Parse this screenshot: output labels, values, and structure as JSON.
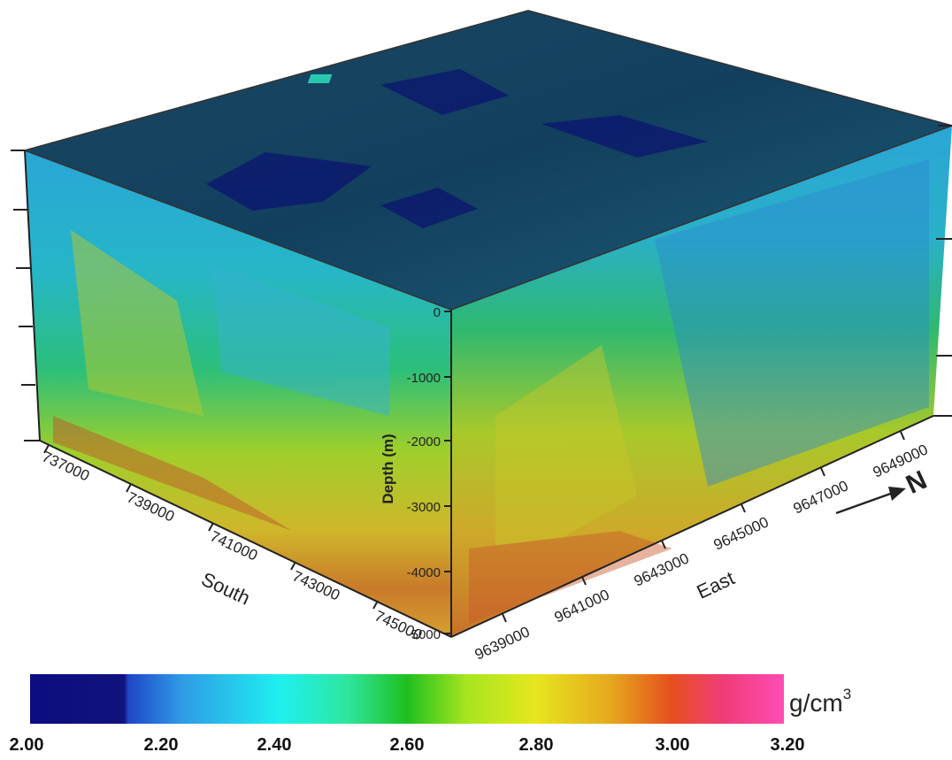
{
  "south_axis": {
    "label": "South",
    "ticks": [
      "737000",
      "739000",
      "741000",
      "743000",
      "745000"
    ]
  },
  "east_axis": {
    "label": "East",
    "ticks": [
      "9639000",
      "9641000",
      "9643000",
      "9645000",
      "9647000",
      "9649000"
    ]
  },
  "depth_axis": {
    "label": "Depth (m)",
    "ticks": [
      "0",
      "-1000",
      "-2000",
      "-3000",
      "-4000",
      "-5000"
    ]
  },
  "north_arrow": {
    "label": "N"
  },
  "colorbar": {
    "unit_base": "g/cm",
    "unit_exp": "3",
    "ticks": [
      "2.00",
      "2.20",
      "2.40",
      "2.60",
      "2.80",
      "3.00",
      "3.20"
    ],
    "stops": [
      "#0c0c80",
      "#1f46c8",
      "#2f9ae6",
      "#1ef0f0",
      "#2ee6a0",
      "#1ec01e",
      "#a8e61e",
      "#e6e61e",
      "#e6a81e",
      "#e6501e",
      "#f03c78",
      "#ff4cb4"
    ]
  }
}
